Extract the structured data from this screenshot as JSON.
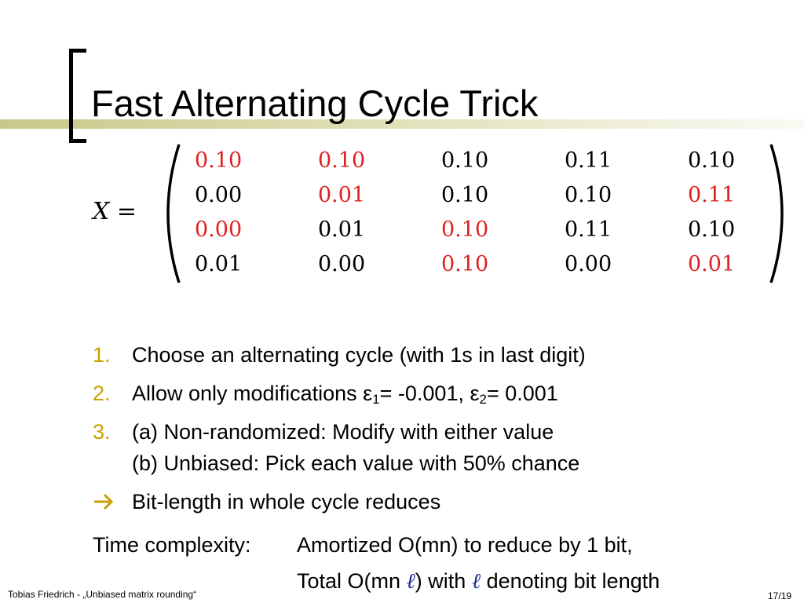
{
  "slide": {
    "title": "Fast Alternating Cycle Trick"
  },
  "matrix": {
    "lhs_var": "X",
    "lhs_eq": "=",
    "rows": [
      [
        {
          "v": "0.10",
          "red": true
        },
        {
          "v": "0.10",
          "red": true
        },
        {
          "v": "0.10",
          "red": false
        },
        {
          "v": "0.11",
          "red": false
        },
        {
          "v": "0.10",
          "red": false
        }
      ],
      [
        {
          "v": "0.00",
          "red": false
        },
        {
          "v": "0.01",
          "red": true
        },
        {
          "v": "0.10",
          "red": false
        },
        {
          "v": "0.10",
          "red": false
        },
        {
          "v": "0.11",
          "red": true
        }
      ],
      [
        {
          "v": "0.00",
          "red": true
        },
        {
          "v": "0.01",
          "red": false
        },
        {
          "v": "0.10",
          "red": true
        },
        {
          "v": "0.11",
          "red": false
        },
        {
          "v": "0.10",
          "red": false
        }
      ],
      [
        {
          "v": "0.01",
          "red": false
        },
        {
          "v": "0.00",
          "red": false
        },
        {
          "v": "0.10",
          "red": true
        },
        {
          "v": "0.00",
          "red": false
        },
        {
          "v": "0.01",
          "red": true
        }
      ]
    ]
  },
  "list": {
    "items": [
      {
        "num": "1.",
        "text": "Choose an alternating cycle (with 1s in last digit)"
      },
      {
        "num": "2.",
        "text_a": "Allow only modifications ε",
        "sub_a": "1",
        "text_b": "= -0.001, ε",
        "sub_b": "2",
        "text_c": "= 0.001"
      },
      {
        "num": "3.",
        "line1": "(a) Non-randomized: Modify with either value",
        "line2": "(b) Unbiased: Pick each value with 50% chance"
      }
    ],
    "arrow_text": "Bit-length in whole cycle reduces"
  },
  "complexity": {
    "label": "Time complexity:",
    "line1": "Amortized O(mn) to reduce by 1 bit,",
    "line2_a": "Total O(mn ",
    "ell": "ℓ",
    "line2_b": ") with ",
    "line2_c": " denoting bit length"
  },
  "footer": {
    "author": "Tobias Friedrich - „Unbiased matrix rounding“",
    "page": "17/19"
  },
  "colors": {
    "accent_gold": "#c8a000",
    "highlight_red": "#e02020",
    "title_rule": "#c8c88a"
  }
}
